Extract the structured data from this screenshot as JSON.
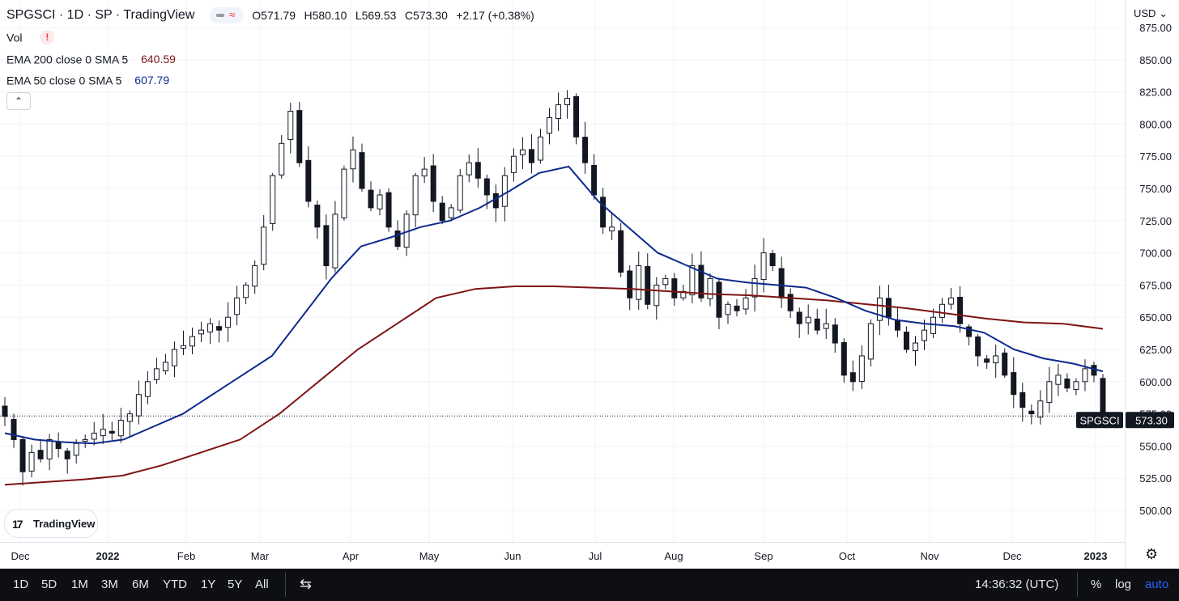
{
  "header": {
    "symbol_title": "SPGSCI · 1D · SP · TradingView",
    "ohlc": {
      "o": "O571.79",
      "h": "H580.10",
      "l": "L569.53",
      "c": "C573.30",
      "chg": "+2.17 (+0.38%)"
    },
    "vol_label": "Vol",
    "warning_glyph": "!",
    "wave_glyph": "≈",
    "ema200_label": "EMA 200 close 0 SMA 5",
    "ema200_value": "640.59",
    "ema50_label": "EMA 50 close 0 SMA 5",
    "ema50_value": "607.79",
    "collapse_glyph": "⌃",
    "currency": "USD",
    "currency_arrow": "⌄"
  },
  "colors": {
    "candle": "#131722",
    "ema200": "#7f1414",
    "ema50": "#0c2a8c",
    "grid": "#f0f3fa",
    "price_tag": "#131722"
  },
  "logo": {
    "mark": "17",
    "text": "TradingView"
  },
  "price_tag": {
    "symbol": "SPGSCI",
    "value": "573.30"
  },
  "chart_data": {
    "type": "candlestick",
    "title": "SPGSCI · 1D · SP · TradingView",
    "ylim": [
      475,
      880
    ],
    "grid": true,
    "y_ticks": [
      "875.00",
      "850.00",
      "825.00",
      "800.00",
      "775.00",
      "750.00",
      "725.00",
      "700.00",
      "675.00",
      "650.00",
      "625.00",
      "600.00",
      "575.00",
      "550.00",
      "525.00",
      "500.00"
    ],
    "x_ticks": [
      "Dec",
      "2022",
      "Feb",
      "Mar",
      "Apr",
      "May",
      "Jun",
      "Jul",
      "Aug",
      "Sep",
      "Oct",
      "Nov",
      "Dec",
      "2023"
    ],
    "last_close": 573.3,
    "price_close": [
      573,
      555,
      530,
      545,
      540,
      555,
      548,
      540,
      552,
      555,
      560,
      563,
      560,
      570,
      575,
      590,
      600,
      610,
      615,
      625,
      628,
      635,
      640,
      645,
      640,
      650,
      665,
      675,
      690,
      720,
      760,
      785,
      810,
      770,
      740,
      720,
      690,
      730,
      765,
      780,
      750,
      735,
      745,
      720,
      705,
      730,
      760,
      765,
      740,
      725,
      735,
      760,
      770,
      758,
      745,
      735,
      760,
      775,
      780,
      770,
      790,
      805,
      815,
      820,
      790,
      770,
      745,
      720,
      720,
      685,
      665,
      690,
      660,
      675,
      680,
      665,
      670,
      690,
      665,
      680,
      650,
      660,
      655,
      665,
      680,
      700,
      690,
      665,
      655,
      645,
      650,
      640,
      645,
      630,
      605,
      600,
      620,
      645,
      665,
      650,
      640,
      625,
      630,
      640,
      650,
      660,
      665,
      645,
      635,
      620,
      615,
      620,
      605,
      590,
      580,
      575,
      585,
      600,
      605,
      595,
      600,
      610,
      605,
      573
    ],
    "ema50": [
      560,
      555,
      553,
      552,
      555,
      565,
      575,
      590,
      605,
      620,
      650,
      680,
      705,
      712,
      720,
      725,
      735,
      748,
      762,
      767,
      740,
      720,
      700,
      690,
      680,
      677,
      675,
      673,
      665,
      655,
      648,
      645,
      643,
      638,
      625,
      618,
      614,
      608
    ],
    "ema200": [
      520,
      522,
      524,
      527,
      535,
      545,
      555,
      575,
      600,
      625,
      645,
      665,
      672,
      674,
      674,
      673,
      672,
      670,
      668,
      667,
      665,
      663,
      660,
      657,
      653,
      649,
      646,
      645,
      641
    ]
  },
  "bottom_bar": {
    "ranges": [
      "1D",
      "5D",
      "1M",
      "3M",
      "6M",
      "YTD",
      "1Y",
      "5Y",
      "All"
    ],
    "compare_icon": "⇆",
    "clock": "14:36:32 (UTC)",
    "percent": "%",
    "log": "log",
    "auto": "auto"
  }
}
